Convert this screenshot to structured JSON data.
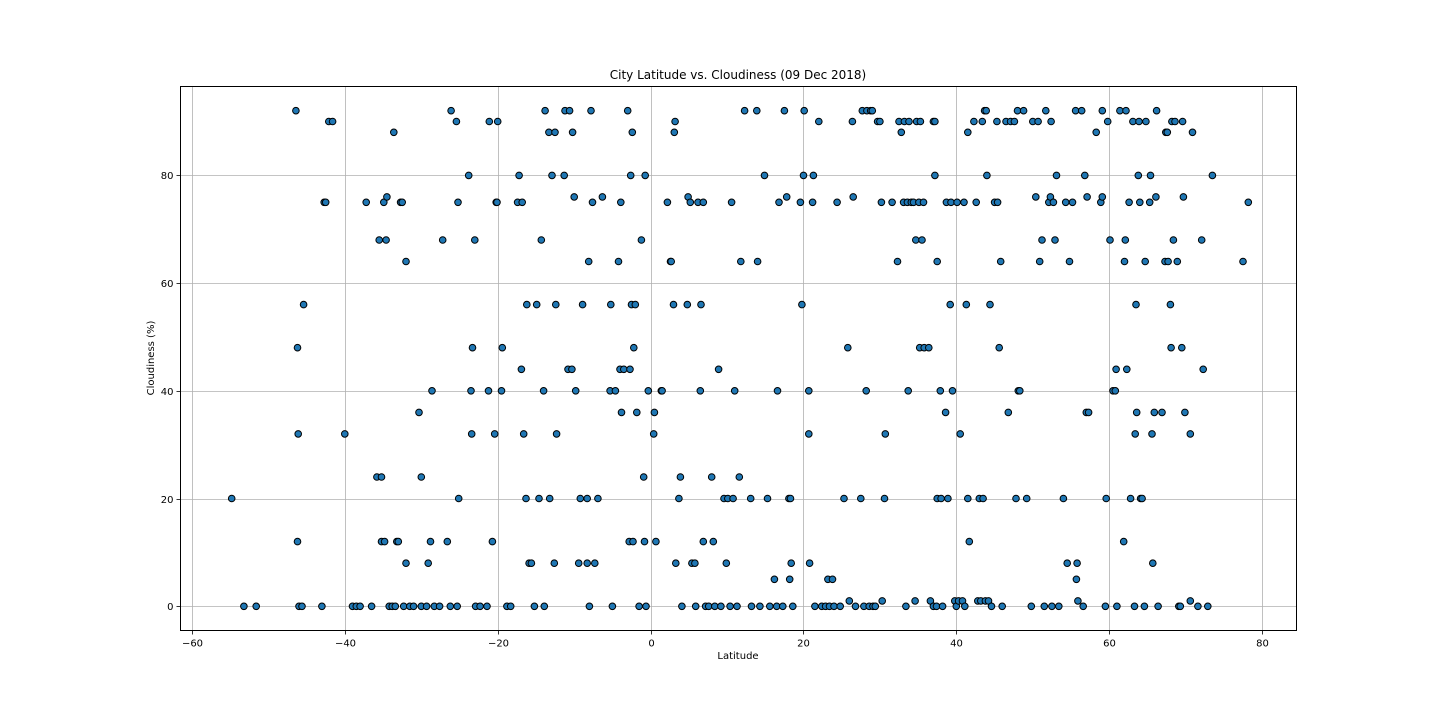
{
  "chart_data": {
    "type": "scatter",
    "title": "City Latitude vs. Cloudiness (09 Dec 2018)",
    "xlabel": "Latitude",
    "ylabel": "Cloudiness (%)",
    "xlim": [
      -61.5,
      84.5
    ],
    "ylim": [
      -4.5,
      96.5
    ],
    "xticks": [
      -60,
      -40,
      -20,
      0,
      20,
      40,
      60,
      80
    ],
    "yticks": [
      0,
      20,
      40,
      60,
      80
    ],
    "xtick_labels": [
      "−60",
      "−40",
      "−20",
      "0",
      "20",
      "40",
      "60",
      "80"
    ],
    "ytick_labels": [
      "0",
      "20",
      "40",
      "60",
      "80"
    ],
    "grid": true,
    "marker_color": "#1f77b4",
    "marker_edge_color": "#000000",
    "points": [
      [
        -54.8,
        20
      ],
      [
        -53.2,
        0
      ],
      [
        -51.6,
        0
      ],
      [
        -46.4,
        92
      ],
      [
        -46.2,
        48
      ],
      [
        -46.1,
        32
      ],
      [
        -46.2,
        12
      ],
      [
        -46,
        0
      ],
      [
        -45.6,
        0
      ],
      [
        -45.4,
        56
      ],
      [
        -43,
        0
      ],
      [
        -42.7,
        75
      ],
      [
        -42.5,
        75
      ],
      [
        -42.1,
        90
      ],
      [
        -41.6,
        90
      ],
      [
        -40,
        32
      ],
      [
        -39,
        0
      ],
      [
        -38.5,
        0
      ],
      [
        -38,
        0
      ],
      [
        -37.2,
        75
      ],
      [
        -36.5,
        0
      ],
      [
        -35.8,
        24
      ],
      [
        -35.5,
        68
      ],
      [
        -35.2,
        24
      ],
      [
        -35.2,
        12
      ],
      [
        -34.9,
        75
      ],
      [
        -34.8,
        12
      ],
      [
        -34.6,
        68
      ],
      [
        -34.5,
        76
      ],
      [
        -34.2,
        0
      ],
      [
        -33.8,
        0
      ],
      [
        -33.6,
        88
      ],
      [
        -33.4,
        0
      ],
      [
        -33.2,
        12
      ],
      [
        -33,
        12
      ],
      [
        -32.7,
        75
      ],
      [
        -32.5,
        75
      ],
      [
        -32.3,
        0
      ],
      [
        -32,
        64
      ],
      [
        -32,
        8
      ],
      [
        -31.5,
        0
      ],
      [
        -31,
        0
      ],
      [
        -30.3,
        36
      ],
      [
        -30,
        24
      ],
      [
        -30,
        0
      ],
      [
        -29.3,
        0
      ],
      [
        -29.1,
        8
      ],
      [
        -28.8,
        12
      ],
      [
        -28.6,
        40
      ],
      [
        -28.3,
        0
      ],
      [
        -27.6,
        0
      ],
      [
        -27.2,
        68
      ],
      [
        -26.6,
        12
      ],
      [
        -26.2,
        0
      ],
      [
        -26.1,
        92
      ],
      [
        -25.4,
        90
      ],
      [
        -25.3,
        0
      ],
      [
        -25.2,
        75
      ],
      [
        -25.1,
        20
      ],
      [
        -23.8,
        80
      ],
      [
        -23.5,
        40
      ],
      [
        -23.4,
        32
      ],
      [
        -23.3,
        48
      ],
      [
        -23,
        68
      ],
      [
        -22.9,
        0
      ],
      [
        -22.3,
        0
      ],
      [
        -21.4,
        0
      ],
      [
        -21.2,
        40
      ],
      [
        -21.1,
        90
      ],
      [
        -20.7,
        12
      ],
      [
        -20.4,
        32
      ],
      [
        -20.2,
        75
      ],
      [
        -20.1,
        75
      ],
      [
        -20,
        90
      ],
      [
        -19.5,
        40
      ],
      [
        -19.4,
        48
      ],
      [
        -18.8,
        0
      ],
      [
        -18.3,
        0
      ],
      [
        -17.4,
        75
      ],
      [
        -17.2,
        80
      ],
      [
        -16.9,
        44
      ],
      [
        -16.8,
        75
      ],
      [
        -16.6,
        32
      ],
      [
        -16.3,
        20
      ],
      [
        -16.2,
        56
      ],
      [
        -15.9,
        8
      ],
      [
        -15.6,
        8
      ],
      [
        -15.2,
        0
      ],
      [
        -14.9,
        56
      ],
      [
        -14.6,
        20
      ],
      [
        -14.3,
        68
      ],
      [
        -14,
        40
      ],
      [
        -13.9,
        0
      ],
      [
        -13.8,
        92
      ],
      [
        -13.3,
        88
      ],
      [
        -13.2,
        20
      ],
      [
        -12.9,
        80
      ],
      [
        -12.6,
        8
      ],
      [
        -12.5,
        88
      ],
      [
        -12.4,
        56
      ],
      [
        -12.3,
        32
      ],
      [
        -11.3,
        80
      ],
      [
        -11.2,
        92
      ],
      [
        -10.8,
        44
      ],
      [
        -10.6,
        92
      ],
      [
        -10.3,
        44
      ],
      [
        -10.2,
        88
      ],
      [
        -10,
        76
      ],
      [
        -9.8,
        40
      ],
      [
        -9.4,
        8
      ],
      [
        -9.2,
        20
      ],
      [
        -8.9,
        56
      ],
      [
        -8.3,
        20
      ],
      [
        -8.3,
        8
      ],
      [
        -8.1,
        64
      ],
      [
        -8,
        0
      ],
      [
        -7.8,
        92
      ],
      [
        -7.6,
        75
      ],
      [
        -7.3,
        8
      ],
      [
        -6.9,
        20
      ],
      [
        -6.3,
        76
      ],
      [
        -5.3,
        40
      ],
      [
        -5.2,
        56
      ],
      [
        -5,
        0
      ],
      [
        -4.6,
        40
      ],
      [
        -4.2,
        64
      ],
      [
        -4,
        44
      ],
      [
        -3.9,
        75
      ],
      [
        -3.8,
        36
      ],
      [
        -3.5,
        44
      ],
      [
        -3,
        92
      ],
      [
        -2.8,
        12
      ],
      [
        -2.7,
        44
      ],
      [
        -2.6,
        80
      ],
      [
        -2.5,
        56
      ],
      [
        -2.4,
        88
      ],
      [
        -2.3,
        12
      ],
      [
        -2.2,
        48
      ],
      [
        -2,
        56
      ],
      [
        -1.8,
        36
      ],
      [
        -1.5,
        0
      ],
      [
        -1.2,
        68
      ],
      [
        -0.9,
        24
      ],
      [
        -0.8,
        12
      ],
      [
        -0.7,
        80
      ],
      [
        -0.6,
        0
      ],
      [
        -0.3,
        40
      ],
      [
        0.4,
        32
      ],
      [
        0.5,
        36
      ],
      [
        0.7,
        12
      ],
      [
        1.4,
        40
      ],
      [
        1.5,
        40
      ],
      [
        2.2,
        75
      ],
      [
        2.6,
        64
      ],
      [
        2.7,
        64
      ],
      [
        3,
        56
      ],
      [
        3.1,
        88
      ],
      [
        3.2,
        90
      ],
      [
        3.3,
        8
      ],
      [
        3.7,
        20
      ],
      [
        3.9,
        24
      ],
      [
        4.1,
        0
      ],
      [
        4.8,
        56
      ],
      [
        4.9,
        76
      ],
      [
        5.2,
        75
      ],
      [
        5.4,
        8
      ],
      [
        5.8,
        8
      ],
      [
        5.9,
        0
      ],
      [
        6.2,
        75
      ],
      [
        6.5,
        40
      ],
      [
        6.6,
        56
      ],
      [
        6.9,
        12
      ],
      [
        6.9,
        75
      ],
      [
        7.2,
        0
      ],
      [
        7.6,
        0
      ],
      [
        8,
        24
      ],
      [
        8.2,
        12
      ],
      [
        8.4,
        0
      ],
      [
        8.9,
        44
      ],
      [
        9.2,
        0
      ],
      [
        9.6,
        20
      ],
      [
        9.9,
        8
      ],
      [
        10.1,
        20
      ],
      [
        10.4,
        0
      ],
      [
        10.6,
        75
      ],
      [
        10.8,
        20
      ],
      [
        11,
        40
      ],
      [
        11.3,
        0
      ],
      [
        11.6,
        24
      ],
      [
        11.8,
        64
      ],
      [
        12.3,
        92
      ],
      [
        13.1,
        20
      ],
      [
        13.2,
        0
      ],
      [
        13.9,
        92
      ],
      [
        14,
        64
      ],
      [
        14.3,
        0
      ],
      [
        14.9,
        80
      ],
      [
        15.3,
        20
      ],
      [
        15.6,
        0
      ],
      [
        16.2,
        5
      ],
      [
        16.5,
        0
      ],
      [
        16.6,
        40
      ],
      [
        16.8,
        75
      ],
      [
        17.3,
        0
      ],
      [
        17.5,
        92
      ],
      [
        17.8,
        76
      ],
      [
        18.1,
        20
      ],
      [
        18.2,
        5
      ],
      [
        18.3,
        20
      ],
      [
        18.4,
        8
      ],
      [
        18.6,
        0
      ],
      [
        19.6,
        75
      ],
      [
        19.8,
        56
      ],
      [
        20,
        80
      ],
      [
        20.1,
        92
      ],
      [
        20.7,
        40
      ],
      [
        20.7,
        32
      ],
      [
        20.8,
        8
      ],
      [
        21.2,
        75
      ],
      [
        21.3,
        80
      ],
      [
        21.5,
        0
      ],
      [
        22,
        90
      ],
      [
        22.4,
        0
      ],
      [
        22.9,
        0
      ],
      [
        23.2,
        5
      ],
      [
        23.4,
        0
      ],
      [
        23.8,
        5
      ],
      [
        24,
        0
      ],
      [
        24.4,
        75
      ],
      [
        24.8,
        0
      ],
      [
        25.3,
        20
      ],
      [
        25.8,
        48
      ],
      [
        26,
        1
      ],
      [
        26.4,
        90
      ],
      [
        26.5,
        76
      ],
      [
        26.8,
        0
      ],
      [
        27.5,
        20
      ],
      [
        27.7,
        92
      ],
      [
        27.9,
        0
      ],
      [
        28.2,
        40
      ],
      [
        28.3,
        92
      ],
      [
        28.6,
        0
      ],
      [
        28.8,
        92
      ],
      [
        29,
        92
      ],
      [
        29.1,
        0
      ],
      [
        29.4,
        0
      ],
      [
        29.7,
        90
      ],
      [
        30,
        90
      ],
      [
        30.2,
        75
      ],
      [
        30.3,
        1
      ],
      [
        30.6,
        20
      ],
      [
        30.7,
        32
      ],
      [
        31.6,
        75
      ],
      [
        32.3,
        64
      ],
      [
        32.5,
        90
      ],
      [
        32.8,
        88
      ],
      [
        33.1,
        75
      ],
      [
        33.2,
        90
      ],
      [
        33.4,
        0
      ],
      [
        33.6,
        75
      ],
      [
        33.7,
        40
      ],
      [
        33.8,
        90
      ],
      [
        34.1,
        75
      ],
      [
        34.4,
        75
      ],
      [
        34.6,
        1
      ],
      [
        34.7,
        68
      ],
      [
        34.8,
        90
      ],
      [
        35.1,
        75
      ],
      [
        35.2,
        48
      ],
      [
        35.3,
        90
      ],
      [
        35.5,
        68
      ],
      [
        35.7,
        75
      ],
      [
        35.8,
        48
      ],
      [
        36.4,
        48
      ],
      [
        36.6,
        1
      ],
      [
        37,
        90
      ],
      [
        37,
        0
      ],
      [
        37.2,
        80
      ],
      [
        37.2,
        90
      ],
      [
        37.4,
        0
      ],
      [
        37.5,
        64
      ],
      [
        37.5,
        20
      ],
      [
        37.9,
        40
      ],
      [
        38,
        20
      ],
      [
        38.2,
        0
      ],
      [
        38.6,
        36
      ],
      [
        38.7,
        75
      ],
      [
        38.9,
        20
      ],
      [
        39.2,
        56
      ],
      [
        39.3,
        75
      ],
      [
        39.5,
        40
      ],
      [
        39.8,
        1
      ],
      [
        40.1,
        75
      ],
      [
        40,
        0
      ],
      [
        40.3,
        1
      ],
      [
        40.5,
        32
      ],
      [
        40.8,
        1
      ],
      [
        41,
        75
      ],
      [
        41.1,
        0
      ],
      [
        41.3,
        56
      ],
      [
        41.5,
        20
      ],
      [
        41.5,
        88
      ],
      [
        41.7,
        12
      ],
      [
        42.3,
        90
      ],
      [
        42.6,
        75
      ],
      [
        42.8,
        1
      ],
      [
        43,
        20
      ],
      [
        43.2,
        1
      ],
      [
        43.4,
        90
      ],
      [
        43.5,
        20
      ],
      [
        43.7,
        92
      ],
      [
        43.9,
        92
      ],
      [
        43.8,
        1
      ],
      [
        44,
        80
      ],
      [
        44.2,
        1
      ],
      [
        44.4,
        56
      ],
      [
        44.6,
        0
      ],
      [
        45,
        75
      ],
      [
        45.3,
        90
      ],
      [
        45.4,
        75
      ],
      [
        45.6,
        48
      ],
      [
        45.8,
        64
      ],
      [
        46,
        0
      ],
      [
        46.5,
        90
      ],
      [
        46.8,
        36
      ],
      [
        47.1,
        90
      ],
      [
        47.6,
        90
      ],
      [
        47.8,
        20
      ],
      [
        48,
        92
      ],
      [
        48.1,
        40
      ],
      [
        48.3,
        40
      ],
      [
        48.8,
        92
      ],
      [
        49.2,
        20
      ],
      [
        49.8,
        0
      ],
      [
        50,
        90
      ],
      [
        50.4,
        76
      ],
      [
        50.7,
        90
      ],
      [
        50.9,
        64
      ],
      [
        51.2,
        68
      ],
      [
        51.5,
        0
      ],
      [
        51.7,
        92
      ],
      [
        52.1,
        75
      ],
      [
        52.3,
        76
      ],
      [
        52.4,
        90
      ],
      [
        52.5,
        0
      ],
      [
        52.7,
        75
      ],
      [
        52.9,
        68
      ],
      [
        53.1,
        80
      ],
      [
        53.4,
        0
      ],
      [
        54,
        20
      ],
      [
        54.3,
        75
      ],
      [
        54.5,
        8
      ],
      [
        54.8,
        64
      ],
      [
        55.2,
        75
      ],
      [
        55.6,
        92
      ],
      [
        55.7,
        5
      ],
      [
        55.8,
        8
      ],
      [
        55.9,
        1
      ],
      [
        56.4,
        92
      ],
      [
        56.6,
        0
      ],
      [
        56.8,
        80
      ],
      [
        57,
        36
      ],
      [
        57.1,
        76
      ],
      [
        57.3,
        36
      ],
      [
        58.3,
        88
      ],
      [
        58.9,
        75
      ],
      [
        59.1,
        92
      ],
      [
        59.1,
        76
      ],
      [
        59.5,
        0
      ],
      [
        59.6,
        20
      ],
      [
        59.8,
        90
      ],
      [
        60.1,
        68
      ],
      [
        60.5,
        40
      ],
      [
        60.8,
        40
      ],
      [
        60.9,
        44
      ],
      [
        61,
        0
      ],
      [
        61.4,
        92
      ],
      [
        61.9,
        12
      ],
      [
        62,
        64
      ],
      [
        62.1,
        68
      ],
      [
        62.2,
        92
      ],
      [
        62.3,
        44
      ],
      [
        62.6,
        75
      ],
      [
        62.8,
        20
      ],
      [
        63.1,
        90
      ],
      [
        63.3,
        0
      ],
      [
        63.4,
        32
      ],
      [
        63.5,
        56
      ],
      [
        63.6,
        36
      ],
      [
        63.8,
        80
      ],
      [
        63.9,
        90
      ],
      [
        64,
        75
      ],
      [
        64.1,
        20
      ],
      [
        64.3,
        20
      ],
      [
        64.6,
        0
      ],
      [
        64.7,
        64
      ],
      [
        64.8,
        90
      ],
      [
        65.3,
        75
      ],
      [
        65.4,
        80
      ],
      [
        65.6,
        32
      ],
      [
        65.7,
        8
      ],
      [
        65.9,
        36
      ],
      [
        66.1,
        76
      ],
      [
        66.2,
        92
      ],
      [
        66.4,
        0
      ],
      [
        66.9,
        36
      ],
      [
        67.3,
        64
      ],
      [
        67.4,
        88
      ],
      [
        67.6,
        88
      ],
      [
        67.7,
        64
      ],
      [
        68,
        56
      ],
      [
        68.1,
        48
      ],
      [
        68.2,
        90
      ],
      [
        68.4,
        68
      ],
      [
        68.6,
        90
      ],
      [
        68.9,
        64
      ],
      [
        69.1,
        0
      ],
      [
        69.3,
        0
      ],
      [
        69.5,
        48
      ],
      [
        69.6,
        90
      ],
      [
        69.7,
        76
      ],
      [
        69.9,
        36
      ],
      [
        70.6,
        1
      ],
      [
        70.6,
        32
      ],
      [
        70.9,
        88
      ],
      [
        71.6,
        0
      ],
      [
        72.1,
        68
      ],
      [
        72.3,
        44
      ],
      [
        72.9,
        0
      ],
      [
        73.5,
        80
      ],
      [
        77.5,
        64
      ],
      [
        78.2,
        75
      ]
    ]
  }
}
